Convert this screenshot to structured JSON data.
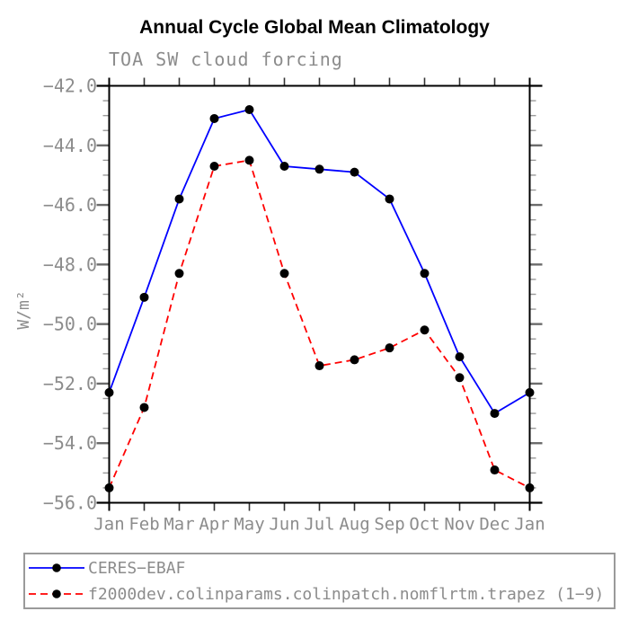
{
  "chart_data": {
    "type": "line",
    "title": "Annual Cycle Global Mean Climatology",
    "subtitle": "TOA SW cloud forcing",
    "ylabel": "W/m²",
    "x_categories": [
      "Jan",
      "Feb",
      "Mar",
      "Apr",
      "May",
      "Jun",
      "Jul",
      "Aug",
      "Sep",
      "Oct",
      "Nov",
      "Dec",
      "Jan"
    ],
    "series": [
      {
        "name": "CERES−EBAF",
        "color": "#0000ff",
        "line_style": "solid",
        "marker": "black-dot",
        "values": [
          -52.3,
          -49.1,
          -45.8,
          -43.1,
          -42.8,
          -44.7,
          -44.8,
          -44.9,
          -45.8,
          -48.3,
          -51.1,
          -53.0,
          -52.3
        ]
      },
      {
        "name": "f2000dev.colinparams.colinpatch.nomflrtm.trapez (1−9)",
        "color": "#ff0000",
        "line_style": "dashed",
        "marker": "black-dot",
        "values": [
          -55.5,
          -52.8,
          -48.3,
          -44.7,
          -44.5,
          -48.3,
          -51.4,
          -51.2,
          -50.8,
          -50.2,
          -51.8,
          -54.9,
          -55.5
        ]
      }
    ],
    "ylim": [
      -56.0,
      -42.0
    ],
    "ytick_major_step": 2.0,
    "ytick_minor_step": 0.5,
    "ytick_labels": [
      "−42.0",
      "−44.0",
      "−46.0",
      "−48.0",
      "−50.0",
      "−52.0",
      "−54.0",
      "−56.0"
    ],
    "grid": "off",
    "legend_position": "bottom-left-box"
  },
  "colors": {
    "series1_blue": "#0000ff",
    "series2_red": "#ff0000",
    "marker_black": "#000000",
    "label_gray": "#8c8c8c",
    "axis_black": "#000000",
    "tick_major_gray": "#6b6b6b",
    "tick_minor_gray": "#9a9a9a",
    "legend_border_gray": "#9a9a9a"
  }
}
